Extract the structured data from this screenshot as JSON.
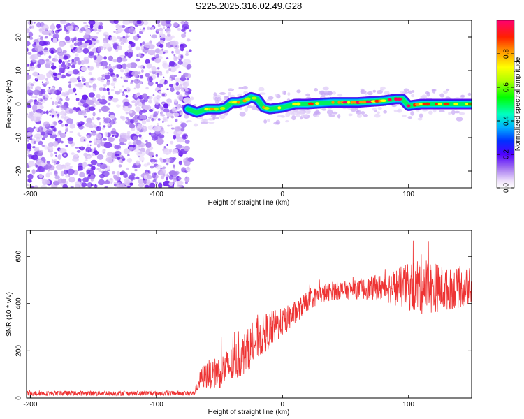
{
  "title": "S225.2025.316.02.49.G28",
  "chart_data": [
    {
      "id": "spectrogram",
      "type": "heatmap",
      "xlabel": "Height of straight line (km)",
      "ylabel": "Frequency (Hz)",
      "xlim": [
        -203,
        150
      ],
      "ylim": [
        -25,
        25
      ],
      "xticks": [
        -200,
        -100,
        0,
        100
      ],
      "yticks": [
        -20,
        -10,
        0,
        10,
        20
      ],
      "colorbar": {
        "label": "Normalized spectral amplitude",
        "range": [
          0,
          1
        ],
        "ticks": [
          0.0,
          0.2,
          0.4,
          0.6,
          0.8
        ]
      },
      "noise_region_x": [
        -203,
        -73
      ],
      "signal_region_x": [
        -75,
        150
      ],
      "signal_frequency_trace": {
        "x": [
          -75,
          -68,
          -60,
          -50,
          -45,
          -40,
          -35,
          -30,
          -25,
          -20,
          -15,
          -10,
          0,
          10,
          20,
          40,
          60,
          80,
          90,
          95,
          100,
          110,
          120,
          130,
          150
        ],
        "y": [
          -1.5,
          -2.5,
          -1.5,
          -1.5,
          -1.0,
          0.5,
          0.5,
          1.0,
          2.0,
          1.5,
          -1.0,
          -1.5,
          -1.0,
          0.0,
          0.0,
          0.5,
          0.5,
          1.0,
          1.5,
          1.5,
          -0.5,
          0.0,
          0.0,
          0.0,
          0.0
        ]
      }
    },
    {
      "id": "snr",
      "type": "line",
      "xlabel": "Height of straight line (km)",
      "ylabel": "SNR (10 * v/v)",
      "xlim": [
        -203,
        150
      ],
      "ylim": [
        0,
        710
      ],
      "xticks": [
        -200,
        -100,
        0,
        100
      ],
      "yticks": [
        0,
        200,
        400,
        600
      ],
      "color": "#ee3333",
      "series": [
        {
          "name": "SNR",
          "x": [
            -203,
            -150,
            -100,
            -70,
            -65,
            -60,
            -50,
            -40,
            -30,
            -20,
            -10,
            0,
            10,
            20,
            30,
            40,
            60,
            80,
            100,
            110,
            120,
            130,
            150
          ],
          "y": [
            20,
            20,
            20,
            20,
            80,
            100,
            110,
            140,
            190,
            250,
            290,
            320,
            360,
            410,
            440,
            455,
            460,
            470,
            470,
            480,
            470,
            460,
            470
          ],
          "spread": [
            10,
            10,
            10,
            10,
            40,
            60,
            70,
            80,
            90,
            90,
            80,
            60,
            50,
            40,
            40,
            40,
            40,
            60,
            100,
            130,
            110,
            90,
            80
          ]
        }
      ]
    }
  ]
}
